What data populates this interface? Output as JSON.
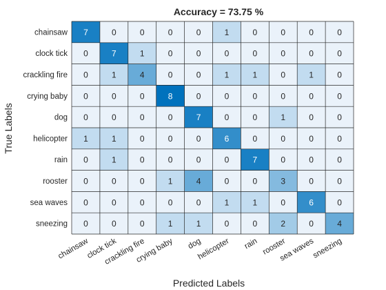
{
  "chart_data": {
    "type": "heatmap",
    "title": "Accuracy = 73.75 %",
    "xlabel": "Predicted Labels",
    "ylabel": "True Labels",
    "rows": [
      "chainsaw",
      "clock tick",
      "crackling fire",
      "crying baby",
      "dog",
      "helicopter",
      "rain",
      "rooster",
      "sea waves",
      "sneezing"
    ],
    "columns": [
      "chainsaw",
      "clock tick",
      "crackling fire",
      "crying baby",
      "dog",
      "helicopter",
      "rain",
      "rooster",
      "sea waves",
      "sneezing"
    ],
    "values": [
      [
        7,
        0,
        0,
        0,
        0,
        1,
        0,
        0,
        0,
        0
      ],
      [
        0,
        7,
        1,
        0,
        0,
        0,
        0,
        0,
        0,
        0
      ],
      [
        0,
        1,
        4,
        0,
        0,
        1,
        1,
        0,
        1,
        0
      ],
      [
        0,
        0,
        0,
        8,
        0,
        0,
        0,
        0,
        0,
        0
      ],
      [
        0,
        0,
        0,
        0,
        7,
        0,
        0,
        1,
        0,
        0
      ],
      [
        1,
        1,
        0,
        0,
        0,
        6,
        0,
        0,
        0,
        0
      ],
      [
        0,
        1,
        0,
        0,
        0,
        0,
        7,
        0,
        0,
        0
      ],
      [
        0,
        0,
        0,
        1,
        4,
        0,
        0,
        3,
        0,
        0
      ],
      [
        0,
        0,
        0,
        0,
        0,
        1,
        1,
        0,
        6,
        0
      ],
      [
        0,
        0,
        0,
        1,
        1,
        0,
        0,
        2,
        0,
        4
      ]
    ],
    "colors": {
      "low": "#eaf2fa",
      "high": "#0072bd",
      "grid": "#262626",
      "text_dark": "#262626",
      "text_light": "#ffffff"
    }
  }
}
